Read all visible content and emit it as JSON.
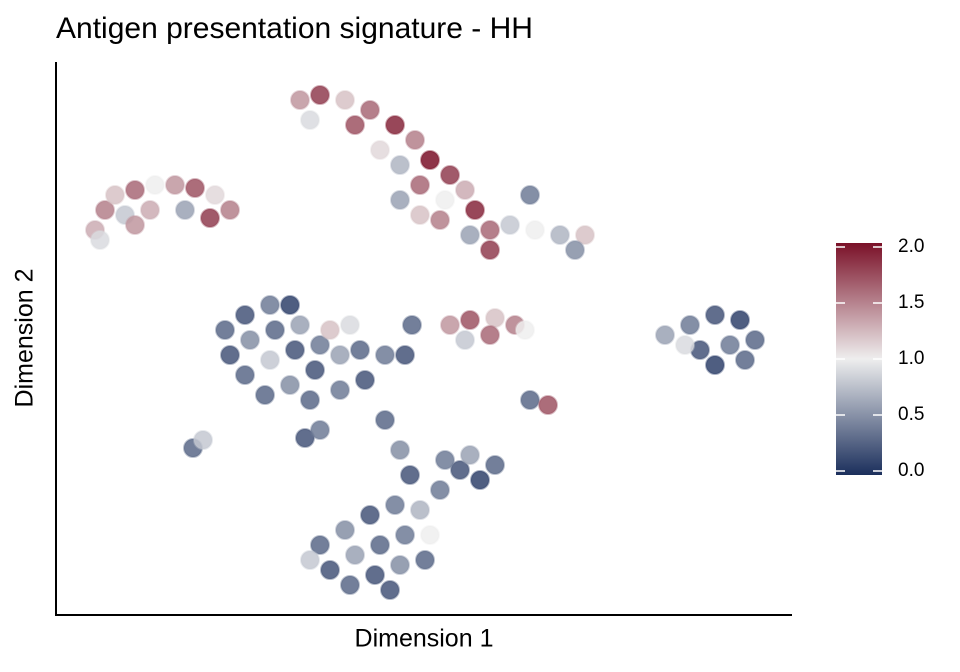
{
  "chart_data": {
    "type": "scatter",
    "title": "Antigen presentation signature - HH",
    "xlabel": "Dimension 1",
    "ylabel": "Dimension 2",
    "xlim": [
      0,
      736
    ],
    "ylim": [
      0,
      553
    ],
    "x": [
      39,
      49,
      59,
      79,
      99,
      119,
      139,
      159,
      174,
      69,
      94,
      129,
      154,
      44,
      79,
      244,
      264,
      289,
      314,
      339,
      359,
      374,
      394,
      409,
      419,
      434,
      434,
      454,
      479,
      504,
      529,
      519,
      474,
      344,
      364,
      384,
      324,
      344,
      254,
      299,
      389,
      414,
      364,
      169,
      189,
      214,
      234,
      174,
      194,
      219,
      244,
      189,
      214,
      239,
      264,
      209,
      234,
      259,
      284,
      304,
      329,
      349,
      274,
      294,
      254,
      284,
      309,
      394,
      414,
      439,
      459,
      409,
      434,
      469,
      609,
      634,
      659,
      684,
      699,
      644,
      674,
      659,
      689,
      629,
      474,
      492,
      137,
      147,
      249,
      264,
      356,
      329,
      344,
      354,
      384,
      404,
      414,
      439,
      424,
      389,
      264,
      289,
      314,
      339,
      364,
      274,
      299,
      324,
      349,
      374,
      294,
      319,
      344,
      369,
      254,
      334
    ],
    "y": [
      385,
      405,
      420,
      425,
      430,
      430,
      427,
      420,
      405,
      400,
      405,
      405,
      397,
      375,
      390,
      515,
      520,
      515,
      505,
      490,
      475,
      455,
      440,
      425,
      405,
      385,
      365,
      390,
      385,
      380,
      380,
      365,
      420,
      415,
      400,
      395,
      465,
      450,
      495,
      490,
      415,
      380,
      430,
      285,
      300,
      310,
      310,
      260,
      275,
      285,
      290,
      240,
      255,
      265,
      270,
      220,
      230,
      245,
      260,
      265,
      260,
      260,
      285,
      290,
      215,
      225,
      235,
      290,
      295,
      297,
      290,
      275,
      280,
      285,
      280,
      290,
      300,
      295,
      275,
      265,
      270,
      250,
      255,
      270,
      215,
      210,
      167,
      175,
      177,
      185,
      290,
      195,
      165,
      140,
      125,
      145,
      160,
      150,
      135,
      155,
      70,
      85,
      100,
      110,
      105,
      45,
      60,
      70,
      80,
      80,
      30,
      40,
      50,
      55,
      55,
      25
    ],
    "values": [
      1.3,
      1.5,
      1.2,
      1.6,
      1.0,
      1.4,
      1.7,
      1.1,
      1.5,
      0.8,
      1.3,
      0.6,
      1.8,
      0.9,
      1.4,
      1.4,
      1.8,
      1.2,
      1.6,
      1.9,
      1.5,
      2.0,
      1.8,
      1.3,
      1.9,
      1.6,
      1.8,
      0.8,
      1.0,
      0.7,
      1.2,
      0.5,
      0.4,
      0.6,
      1.2,
      1.5,
      1.1,
      0.7,
      0.9,
      1.7,
      1.0,
      0.6,
      1.6,
      0.3,
      0.2,
      0.4,
      0.1,
      0.2,
      0.5,
      0.3,
      0.6,
      0.3,
      0.8,
      0.2,
      0.4,
      0.3,
      0.5,
      0.2,
      0.6,
      0.3,
      0.4,
      0.2,
      1.2,
      0.9,
      0.3,
      0.4,
      0.2,
      1.4,
      1.7,
      1.2,
      1.5,
      0.8,
      1.6,
      1.0,
      0.6,
      0.4,
      0.2,
      0.1,
      0.3,
      0.2,
      0.4,
      0.1,
      0.3,
      0.9,
      0.3,
      1.7,
      0.3,
      0.8,
      0.2,
      0.4,
      0.3,
      0.3,
      0.5,
      0.2,
      0.4,
      0.2,
      0.6,
      0.3,
      0.1,
      0.4,
      0.3,
      0.5,
      0.2,
      0.4,
      0.7,
      0.2,
      0.6,
      0.3,
      0.4,
      1.0,
      0.3,
      0.2,
      0.5,
      0.3,
      0.8,
      0.2
    ],
    "colorscale": {
      "low": "#1b2f5c",
      "mid": "#eeeeee",
      "high": "#7a1128"
    },
    "clim": [
      0,
      2
    ],
    "cticks": [
      {
        "value": 0,
        "label": "0.0"
      },
      {
        "value": 0.5,
        "label": "0.5"
      },
      {
        "value": 1,
        "label": "1.0"
      },
      {
        "value": 1.5,
        "label": "1.5"
      },
      {
        "value": 2,
        "label": "2.0"
      }
    ]
  }
}
